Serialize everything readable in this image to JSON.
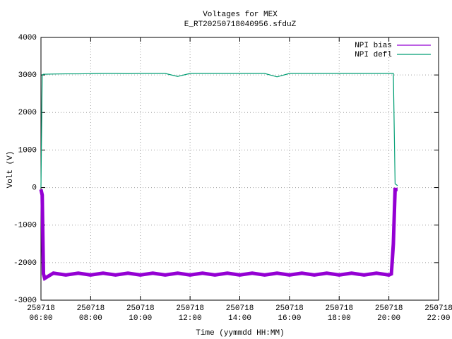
{
  "chart_data": {
    "type": "line",
    "title": "Voltages for MEX",
    "subtitle": "E_RT20250718040956.sfduZ",
    "x_label": "Time (yymmdd HH:MM)",
    "y_label": "Volt (V)",
    "xlim": [
      6,
      22
    ],
    "xticks": [
      {
        "value": 6,
        "label": "250718\n06:00"
      },
      {
        "value": 8,
        "label": "250718\n08:00"
      },
      {
        "value": 10,
        "label": "250718\n10:00"
      },
      {
        "value": 12,
        "label": "250718\n12:00"
      },
      {
        "value": 14,
        "label": "250718\n14:00"
      },
      {
        "value": 16,
        "label": "250718\n16:00"
      },
      {
        "value": 18,
        "label": "250718\n18:00"
      },
      {
        "value": 20,
        "label": "250718\n20:00"
      },
      {
        "value": 22,
        "label": "250718\n22:00"
      }
    ],
    "ylim": [
      -3000,
      4000
    ],
    "yticks": [
      -3000,
      -2000,
      -1000,
      0,
      1000,
      2000,
      3000,
      4000
    ],
    "grid": true,
    "legend": "top-right",
    "x": [
      6.0,
      6.05,
      6.1,
      6.15,
      6.5,
      7.0,
      7.5,
      8.0,
      8.5,
      9.0,
      9.5,
      10.0,
      10.5,
      11.0,
      11.5,
      12.0,
      12.5,
      13.0,
      13.5,
      14.0,
      14.5,
      15.0,
      15.5,
      16.0,
      16.5,
      17.0,
      17.5,
      18.0,
      18.5,
      19.0,
      19.5,
      20.0,
      20.1,
      20.18,
      20.25,
      20.35
    ],
    "series": [
      {
        "name": "NPI bias",
        "color": "#9400d3",
        "values": [
          -50,
          -200,
          -2300,
          -2420,
          -2280,
          -2330,
          -2280,
          -2330,
          -2280,
          -2330,
          -2280,
          -2330,
          -2280,
          -2330,
          -2280,
          -2330,
          -2280,
          -2330,
          -2280,
          -2330,
          -2280,
          -2330,
          -2280,
          -2330,
          -2280,
          -2330,
          -2280,
          -2330,
          -2280,
          -2330,
          -2280,
          -2330,
          -2300,
          -1500,
          -50,
          -50
        ]
      },
      {
        "name": "NPI defl",
        "color": "#009e73",
        "values": [
          0,
          3000,
          3020,
          3020,
          3025,
          3030,
          3030,
          3035,
          3040,
          3040,
          3035,
          3040,
          3040,
          3040,
          2960,
          3040,
          3040,
          3040,
          3040,
          3040,
          3040,
          3040,
          2950,
          3040,
          3040,
          3040,
          3040,
          3040,
          3040,
          3040,
          3040,
          3040,
          3040,
          3040,
          100,
          50
        ]
      }
    ]
  }
}
